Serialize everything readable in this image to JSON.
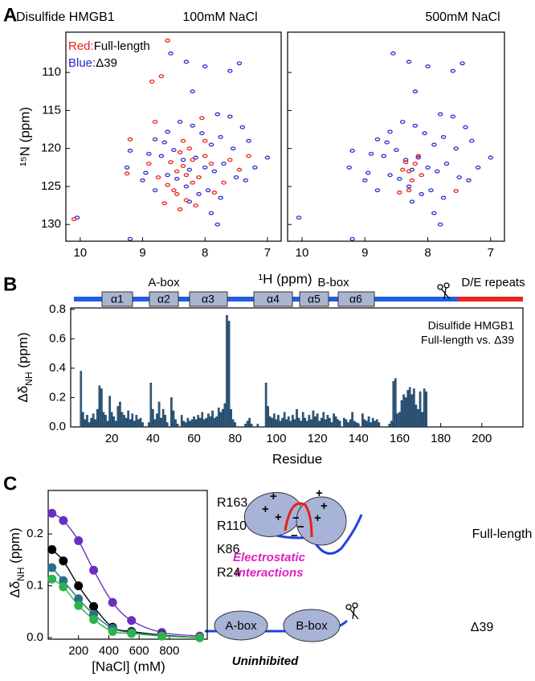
{
  "panel_labels": [
    "A",
    "B",
    "C"
  ],
  "chart_data": [
    {
      "type": "scatter",
      "label": "Disulfide HMGB1",
      "title": "100mM NaCl",
      "xlabel": "¹H (ppm)",
      "ylabel": "¹⁵N (ppm)",
      "xlim": [
        10.23,
        6.78
      ],
      "ylim": [
        132.2,
        104.7
      ],
      "xticks": [
        10,
        9,
        8,
        7
      ],
      "yticks": [
        110,
        115,
        120,
        125,
        130
      ],
      "series": [
        {
          "name": "Full-length",
          "key": "Red:",
          "color": "#e8201a",
          "x": [
            10.1,
            8.7,
            8.85,
            8.6,
            8.4,
            8.3,
            8.2,
            8.35,
            8.5,
            8.1,
            8.25,
            8.45,
            8.15,
            8.0,
            7.9,
            8.55,
            8.6,
            8.3,
            8.4,
            7.7,
            7.45,
            8.05,
            8.8,
            9.2,
            8.9,
            8.65,
            8.35,
            8.2,
            7.6,
            7.3,
            8.0,
            8.45,
            8.75,
            9.25,
            7.85
          ],
          "values": [
            129.3,
            110.5,
            111.2,
            105.8,
            120.5,
            123.5,
            124.5,
            122.3,
            125.5,
            123.8,
            120.0,
            126.0,
            127.5,
            121.0,
            122.0,
            121.8,
            124.8,
            126.8,
            128.0,
            124.5,
            122.8,
            116.0,
            116.5,
            118.8,
            122.0,
            127.2,
            119.0,
            121.5,
            121.5,
            121.0,
            119.0,
            123.0,
            123.8,
            123.3,
            125.8
          ]
        },
        {
          "name": "Δ39",
          "key": "Blue:",
          "color": "#2a2ad0",
          "x": [
            10.05,
            9.2,
            9.25,
            8.55,
            8.3,
            8.0,
            7.6,
            7.45,
            8.2,
            7.8,
            7.6,
            7.4,
            7.0,
            7.3,
            7.55,
            7.75,
            7.9,
            8.05,
            8.2,
            8.4,
            8.6,
            8.8,
            8.9,
            8.95,
            8.7,
            8.5,
            8.35,
            8.25,
            8.15,
            8.0,
            7.85,
            7.7,
            7.5,
            7.35,
            7.2,
            7.95,
            8.1,
            8.3,
            8.45,
            8.6,
            8.8,
            7.75,
            7.9,
            8.25,
            7.8,
            9.2,
            9.0,
            8.65
          ],
          "values": [
            129.1,
            120.3,
            122.5,
            107.5,
            108.6,
            109.2,
            109.8,
            108.8,
            112.5,
            115.5,
            115.8,
            117.2,
            121.2,
            119.0,
            120.0,
            118.5,
            119.5,
            118.0,
            117.0,
            116.5,
            117.8,
            118.8,
            120.7,
            123.2,
            121.0,
            120.2,
            121.5,
            122.8,
            121.2,
            122.5,
            123.0,
            122.0,
            123.8,
            124.2,
            122.5,
            125.5,
            126.0,
            125.0,
            124.0,
            123.5,
            125.5,
            126.5,
            128.5,
            127.0,
            130.0,
            131.9,
            124.2,
            119.2
          ]
        }
      ]
    },
    {
      "type": "scatter",
      "title": "500mM NaCl",
      "show_ytick_labels": false,
      "xlim": [
        10.23,
        6.78
      ],
      "ylim": [
        132.2,
        104.7
      ],
      "xticks": [
        10,
        9,
        8,
        7
      ],
      "yticks": [
        110,
        115,
        120,
        125,
        130
      ],
      "series": [
        {
          "color": "#e8201a",
          "x": [
            8.3,
            8.25,
            8.35,
            8.4,
            8.2,
            8.3,
            8.45,
            8.1,
            7.55,
            8.15
          ],
          "values": [
            123.0,
            124.2,
            121.8,
            122.8,
            122.0,
            125.5,
            125.8,
            123.5,
            125.6,
            121.0
          ]
        },
        {
          "color": "#2a2ad0",
          "x": [
            10.05,
            9.2,
            9.25,
            8.55,
            8.3,
            8.0,
            7.6,
            7.45,
            8.2,
            7.8,
            7.6,
            7.4,
            7.0,
            7.3,
            7.55,
            7.75,
            7.9,
            8.05,
            8.2,
            8.4,
            8.6,
            8.8,
            8.9,
            8.95,
            8.7,
            8.5,
            8.35,
            8.25,
            8.15,
            8.0,
            7.85,
            7.7,
            7.5,
            7.35,
            7.2,
            7.95,
            8.1,
            8.3,
            8.45,
            8.6,
            8.8,
            7.75,
            7.9,
            8.25,
            7.8,
            9.2,
            9.0,
            8.65
          ],
          "values": [
            129.1,
            120.3,
            122.5,
            107.5,
            108.6,
            109.2,
            109.8,
            108.8,
            112.5,
            115.5,
            115.8,
            117.2,
            121.2,
            119.0,
            120.0,
            118.5,
            119.5,
            118.0,
            117.0,
            116.5,
            117.8,
            118.8,
            120.7,
            123.2,
            121.0,
            120.2,
            121.5,
            122.8,
            121.2,
            122.5,
            123.0,
            122.0,
            123.8,
            124.2,
            122.5,
            125.5,
            126.0,
            125.0,
            124.0,
            123.5,
            125.5,
            126.5,
            128.5,
            127.0,
            130.0,
            131.9,
            124.2,
            119.2
          ]
        }
      ]
    },
    {
      "type": "bar",
      "xlabel": "Residue",
      "ylabel": {
        "main": "Δδ",
        "sub": "NH",
        "rest": " (ppm)"
      },
      "annotation": [
        "Disulfide HMGB1",
        "Full-length vs. Δ39"
      ],
      "domains": [
        "A-box",
        "B-box",
        "D/E repeats"
      ],
      "helices": [
        "α1",
        "α2",
        "α3",
        "α4",
        "α5",
        "α6"
      ],
      "color": "#2e5f88",
      "xlim": [
        0,
        220
      ],
      "ylim": [
        0,
        0.81
      ],
      "xticks": [
        20,
        40,
        60,
        80,
        100,
        120,
        140,
        160,
        180,
        200
      ],
      "yticks": [
        {
          "value": 0,
          "label": "0.0"
        },
        0.2,
        0.4,
        0.6,
        0.8
      ],
      "x": [
        5,
        6,
        7,
        8,
        9,
        10,
        11,
        12,
        13,
        14,
        15,
        16,
        17,
        18,
        19,
        20,
        21,
        22,
        23,
        24,
        25,
        26,
        27,
        28,
        29,
        30,
        31,
        32,
        33,
        34,
        35,
        38,
        39,
        40,
        41,
        42,
        43,
        44,
        45,
        46,
        47,
        49,
        50,
        51,
        52,
        54,
        55,
        56,
        57,
        58,
        59,
        60,
        61,
        62,
        63,
        64,
        65,
        66,
        67,
        68,
        69,
        70,
        71,
        72,
        73,
        74,
        75,
        76,
        77,
        78,
        79,
        80,
        85,
        86,
        87,
        88,
        91,
        95,
        96,
        97,
        98,
        99,
        100,
        101,
        102,
        103,
        104,
        105,
        106,
        107,
        108,
        109,
        110,
        111,
        112,
        113,
        114,
        115,
        116,
        117,
        118,
        119,
        120,
        121,
        122,
        123,
        124,
        125,
        126,
        127,
        128,
        129,
        130,
        131,
        133,
        134,
        135,
        136,
        137,
        138,
        139,
        140,
        142,
        143,
        144,
        145,
        146,
        147,
        148,
        149,
        150,
        155,
        156,
        157,
        158,
        159,
        160,
        161,
        162,
        163,
        164,
        165,
        166,
        167,
        168,
        169,
        170,
        171,
        172,
        173
      ],
      "values": [
        0.38,
        0.1,
        0.05,
        0.08,
        0.03,
        0.06,
        0.09,
        0.05,
        0.12,
        0.28,
        0.26,
        0.1,
        0.08,
        0.04,
        0.21,
        0.1,
        0.07,
        0.04,
        0.14,
        0.17,
        0.1,
        0.08,
        0.06,
        0.11,
        0.05,
        0.09,
        0.04,
        0.08,
        0.05,
        0.06,
        0.03,
        0.03,
        0.3,
        0.12,
        0.05,
        0.09,
        0.17,
        0.06,
        0.12,
        0.08,
        0.03,
        0.2,
        0.11,
        0.05,
        0.02,
        0.08,
        0.04,
        0.03,
        0.06,
        0.04,
        0.05,
        0.07,
        0.05,
        0.08,
        0.06,
        0.1,
        0.05,
        0.06,
        0.09,
        0.07,
        0.11,
        0.06,
        0.07,
        0.13,
        0.1,
        0.12,
        0.16,
        0.76,
        0.72,
        0.12,
        0.05,
        0.03,
        0.02,
        0.04,
        0.06,
        0.02,
        0.02,
        0.3,
        0.14,
        0.07,
        0.06,
        0.09,
        0.05,
        0.08,
        0.04,
        0.06,
        0.1,
        0.05,
        0.07,
        0.04,
        0.08,
        0.05,
        0.12,
        0.06,
        0.04,
        0.1,
        0.06,
        0.04,
        0.08,
        0.05,
        0.11,
        0.07,
        0.09,
        0.04,
        0.06,
        0.1,
        0.05,
        0.08,
        0.06,
        0.03,
        0.09,
        0.07,
        0.05,
        0.04,
        0.06,
        0.05,
        0.03,
        0.05,
        0.1,
        0.04,
        0.03,
        0.02,
        0.09,
        0.05,
        0.04,
        0.07,
        0.03,
        0.06,
        0.04,
        0.05,
        0.03,
        0.02,
        0.04,
        0.31,
        0.33,
        0.09,
        0.1,
        0.18,
        0.22,
        0.2,
        0.25,
        0.27,
        0.22,
        0.26,
        0.15,
        0.12,
        0.24,
        0.1,
        0.26,
        0.24
      ]
    },
    {
      "type": "line",
      "xlabel": "[NaCl] (mM)",
      "ylabel": {
        "main": "Δδ",
        "sub": "NH",
        "rest": " (ppm)"
      },
      "xlim": [
        0,
        1050
      ],
      "ylim": [
        -0.003,
        0.284
      ],
      "xticks": [
        200,
        400,
        600,
        800
      ],
      "yticks": [
        {
          "value": 0,
          "label": "0.0"
        },
        0.1,
        0.2
      ],
      "x": [
        25,
        100,
        200,
        300,
        425,
        550,
        750,
        1000
      ],
      "series": [
        {
          "name": "R163",
          "color": "#6a2fc0",
          "values": [
            0.24,
            0.226,
            0.187,
            0.13,
            0.068,
            0.033,
            0.01,
            0.003
          ]
        },
        {
          "name": "R110",
          "color": "#000000",
          "values": [
            0.17,
            0.148,
            0.1,
            0.06,
            0.02,
            0.012,
            0.005,
            0.0
          ]
        },
        {
          "name": "K86",
          "color": "#2a6f8a",
          "values": [
            0.135,
            0.11,
            0.075,
            0.045,
            0.018,
            0.01,
            0.004,
            0.0
          ]
        },
        {
          "name": "R24",
          "color": "#2db34a",
          "values": [
            0.113,
            0.098,
            0.062,
            0.035,
            0.012,
            0.008,
            0.003,
            0.0
          ]
        }
      ]
    }
  ],
  "diagram": {
    "full": "Full-length",
    "interaction": [
      "Electrostatic",
      "interactions"
    ],
    "boxes": [
      "A-box",
      "B-box"
    ],
    "truncated": "Δ39",
    "state": "Uninhibited",
    "plus": "+",
    "minus": "−"
  }
}
